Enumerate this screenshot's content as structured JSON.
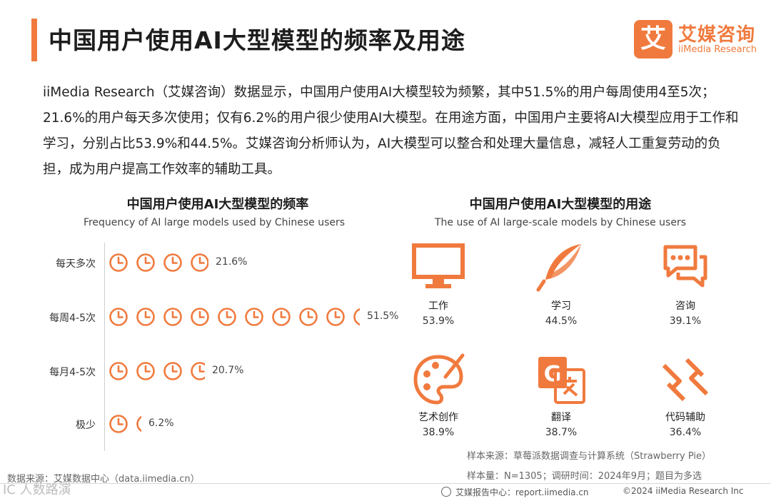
{
  "header": {
    "title": "中国用户使用AI大型模型的频率及用途",
    "logo_mark": "艾",
    "logo_cn": "艾媒咨询",
    "logo_en": "iiMedia Research"
  },
  "intro": "iiMedia Research（艾媒咨询）数据显示，中国用户使用AI大模型较为频繁，其中51.5%的用户每周使用4至5次；21.6%的用户每天多次使用；仅有6.2%的用户很少使用AI大模型。在用途方面，中国用户主要将AI大模型应用于工作和学习，分别占比53.9%和44.5%。艾媒咨询分析师认为，AI大模型可以整合和处理大量信息，减轻人工重复劳动的负担，成为用户提高工作效率的辅助工具。",
  "chart_data": [
    {
      "type": "bar",
      "title": "中国用户使用AI大型模型的频率",
      "subtitle": "Frequency of AI large models used by Chinese users",
      "categories": [
        "每天多次",
        "每周4-5次",
        "每月4-5次",
        "极少"
      ],
      "values": [
        21.6,
        51.5,
        20.7,
        6.2
      ],
      "value_labels": [
        "21.6%",
        "51.5%",
        "20.7%",
        "6.2%"
      ],
      "unit": "%",
      "icons_per_unit": 5.5,
      "icon": "clock-icon",
      "color": "#f07a3e"
    },
    {
      "type": "table",
      "title": "中国用户使用AI大型模型的用途",
      "subtitle": "The use of AI large-scale models by Chinese users",
      "categories": [
        "工作",
        "学习",
        "咨询",
        "艺术创作",
        "翻译",
        "代码辅助"
      ],
      "values": [
        53.9,
        44.5,
        39.1,
        38.9,
        38.7,
        36.4
      ],
      "value_labels": [
        "53.9%",
        "44.5%",
        "39.1%",
        "38.9%",
        "38.7%",
        "36.4%"
      ],
      "icons": [
        "monitor-icon",
        "quill-icon",
        "chat-icon",
        "palette-icon",
        "translate-icon",
        "code-icon"
      ],
      "color": "#f07a3e"
    }
  ],
  "notes": {
    "sample_source": "样本来源：草莓派数据调查与计算系统（Strawberry Pie）",
    "sample_size": "样本量：N=1305；调研时间：2024年9月；题目为多选",
    "data_source": "数据来源：艾媒数据中心（data.iimedia.cn）"
  },
  "footer": {
    "report_center": "艾媒报告中心：report.iimedia.cn",
    "copyright": "©2024  iiMedia Research  Inc",
    "watermark": "IC 人数路演"
  },
  "colors": {
    "accent": "#f07a3e",
    "text": "#222222"
  }
}
